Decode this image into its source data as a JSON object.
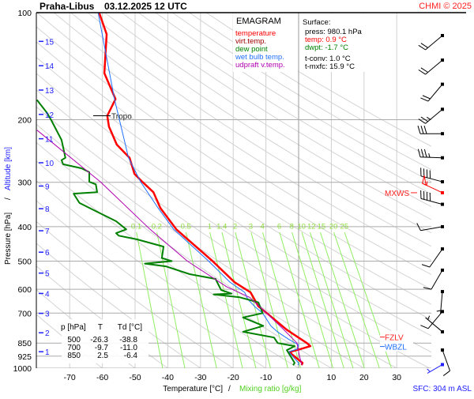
{
  "header": {
    "station": "Praha-Libus",
    "datetime": "03.12.2025 12 UTC",
    "copyright": "CHMI © 2025"
  },
  "legend": {
    "title": "EMAGRAM",
    "items": [
      {
        "label": "temperature",
        "color": "#ff0000"
      },
      {
        "label": "virt.temp.",
        "color": "#a00000"
      },
      {
        "label": "dew point",
        "color": "#008000"
      },
      {
        "label": "wet bulb temp.",
        "color": "#2070ff"
      },
      {
        "label": "udpraft v.temp.",
        "color": "#b000b0"
      }
    ]
  },
  "surface": {
    "title": "Surface:",
    "press": "press: 980.1 hPa",
    "temp": "temp: 0.9 °C",
    "dwpt": "dwpt: -1.7 °C",
    "tconv": "t-conv: 1.0 °C",
    "tmxfc": "t-mxfc: 15.9 °C"
  },
  "table": {
    "headers": [
      "p [hPa]",
      "T",
      "Td [°C]"
    ],
    "rows": [
      [
        "500",
        "-26.3",
        "-38.8"
      ],
      [
        "700",
        "-9.7",
        "-11.0"
      ],
      [
        "850",
        "2.5",
        "-6.4"
      ]
    ]
  },
  "annotations": {
    "tropo": "Tropo",
    "tropo_p": 195,
    "mxws": "MXWS",
    "mxws_p": 321,
    "fzlv": "FZLV",
    "fzlv_p": 830,
    "wbzl": "WBZL",
    "wbzl_p": 855,
    "sfc": "SFC: 304 m ASL"
  },
  "chart_data": {
    "type": "line",
    "title": "EMAGRAM",
    "xlabel": "Temperature [°C]",
    "xlabel2": "Mixing ratio [g/kg]",
    "ylabel": "Pressure [hPa]",
    "ylabel2": "Altitude [km]",
    "xlim": [
      -80,
      40
    ],
    "ylim": [
      1000,
      100
    ],
    "x_ticks": [
      -70,
      -60,
      -50,
      -40,
      -30,
      -20,
      -10,
      0,
      10,
      20,
      30
    ],
    "p_ticks": [
      100,
      200,
      300,
      400,
      500,
      600,
      700,
      850,
      925,
      1000
    ],
    "km_ticks": [
      1,
      2,
      3,
      4,
      5,
      6,
      7,
      8,
      9,
      10,
      11,
      12,
      13,
      14,
      15
    ],
    "mixing_ratios": [
      "0.1",
      "0.2",
      "0.5",
      "1",
      "1.4",
      "2",
      "3",
      "4",
      "6",
      "8",
      "10",
      "12",
      "15",
      "20",
      "25"
    ],
    "series": [
      {
        "name": "temperature",
        "color": "#ff0000",
        "points": [
          [
            100,
            -61
          ],
          [
            115,
            -58.7
          ],
          [
            148,
            -59.4
          ],
          [
            175,
            -56
          ],
          [
            195,
            -58.5
          ],
          [
            209,
            -58
          ],
          [
            235,
            -55.6
          ],
          [
            256,
            -51.7
          ],
          [
            284,
            -50.2
          ],
          [
            299,
            -47.8
          ],
          [
            320,
            -44.4
          ],
          [
            354,
            -42.3
          ],
          [
            407,
            -37.4
          ],
          [
            500,
            -26.3
          ],
          [
            573,
            -19.6
          ],
          [
            612,
            -14.7
          ],
          [
            670,
            -12.3
          ],
          [
            700,
            -9.7
          ],
          [
            780,
            -3.6
          ],
          [
            850,
            2.5
          ],
          [
            867,
            3.6
          ],
          [
            884,
            0.5
          ],
          [
            900,
            -2.7
          ],
          [
            915,
            -2
          ],
          [
            967,
            1.2
          ],
          [
            980,
            0.9
          ]
        ]
      },
      {
        "name": "wet bulb temp.",
        "color": "#2070ff",
        "points": [
          [
            100,
            -61.3
          ],
          [
            175,
            -56.3
          ],
          [
            256,
            -52
          ],
          [
            299,
            -48.3
          ],
          [
            354,
            -43
          ],
          [
            407,
            -38.2
          ],
          [
            500,
            -27.5
          ],
          [
            573,
            -21
          ],
          [
            612,
            -16.5
          ],
          [
            640,
            -15.5
          ],
          [
            670,
            -13.5
          ],
          [
            700,
            -11
          ],
          [
            760,
            -8.5
          ],
          [
            790,
            -6.5
          ],
          [
            830,
            -3
          ],
          [
            860,
            0
          ],
          [
            884,
            -0.5
          ],
          [
            900,
            -3
          ],
          [
            967,
            0
          ],
          [
            980,
            -0.2
          ]
        ]
      },
      {
        "name": "dew point",
        "color": "#008000",
        "points": [
          [
            176,
            -80
          ],
          [
            192,
            -76.8
          ],
          [
            201,
            -75.6
          ],
          [
            228,
            -72.5
          ],
          [
            256,
            -71.3
          ],
          [
            260,
            -72.5
          ],
          [
            267,
            -72
          ],
          [
            274,
            -66.4
          ],
          [
            281,
            -64
          ],
          [
            299,
            -64
          ],
          [
            304,
            -62
          ],
          [
            320,
            -61.6
          ],
          [
            323,
            -68.8
          ],
          [
            343,
            -67
          ],
          [
            367,
            -60.6
          ],
          [
            386,
            -55.8
          ],
          [
            407,
            -52.7
          ],
          [
            417,
            -55.8
          ],
          [
            424,
            -55
          ],
          [
            434,
            -49.5
          ],
          [
            455,
            -41.3
          ],
          [
            490,
            -41.8
          ],
          [
            500,
            -38.8
          ],
          [
            508,
            -47
          ],
          [
            517,
            -40.6
          ],
          [
            544,
            -33.3
          ],
          [
            561,
            -25.4
          ],
          [
            603,
            -23.7
          ],
          [
            617,
            -20.5
          ],
          [
            620,
            -26
          ],
          [
            632,
            -18
          ],
          [
            653,
            -12.3
          ],
          [
            700,
            -11
          ],
          [
            720,
            -17
          ],
          [
            760,
            -10.8
          ],
          [
            790,
            -17
          ],
          [
            820,
            -7.5
          ],
          [
            850,
            -6.4
          ],
          [
            867,
            -1.2
          ],
          [
            890,
            -3.6
          ],
          [
            967,
            -1.2
          ],
          [
            980,
            -1.7
          ]
        ]
      },
      {
        "name": "udpraft v.temp.",
        "color": "#b000b0",
        "points": [
          [
            214,
            -80
          ],
          [
            299,
            -60.6
          ],
          [
            407,
            -45.4
          ],
          [
            500,
            -34
          ],
          [
            590,
            -22
          ],
          [
            632,
            -15
          ],
          [
            700,
            -9.8
          ],
          [
            780,
            -4.5
          ],
          [
            850,
            -0.5
          ],
          [
            925,
            0.3
          ],
          [
            980,
            1.0
          ]
        ]
      }
    ],
    "wind_barbs": [
      {
        "p": 116,
        "dir": 230,
        "kt": 20
      },
      {
        "p": 136,
        "dir": 230,
        "kt": 20
      },
      {
        "p": 159,
        "dir": 220,
        "kt": 20
      },
      {
        "p": 187,
        "dir": 230,
        "kt": 25
      },
      {
        "p": 219,
        "dir": 270,
        "kt": 30
      },
      {
        "p": 256,
        "dir": 272,
        "kt": 35
      },
      {
        "p": 299,
        "dir": 285,
        "kt": 40
      },
      {
        "p": 321,
        "dir": 295,
        "kt": 55,
        "max": true
      },
      {
        "p": 346,
        "dir": 285,
        "kt": 40
      },
      {
        "p": 400,
        "dir": 260,
        "kt": 10
      },
      {
        "p": 462,
        "dir": 215,
        "kt": 10
      },
      {
        "p": 530,
        "dir": 210,
        "kt": 10
      },
      {
        "p": 609,
        "dir": 185,
        "kt": 5
      },
      {
        "p": 693,
        "dir": 220,
        "kt": 10
      },
      {
        "p": 790,
        "dir": 310,
        "kt": 5
      },
      {
        "p": 889,
        "dir": 160,
        "kt": 10
      },
      {
        "p": 977,
        "dir": 240,
        "kt": 5,
        "surface": true
      }
    ]
  }
}
